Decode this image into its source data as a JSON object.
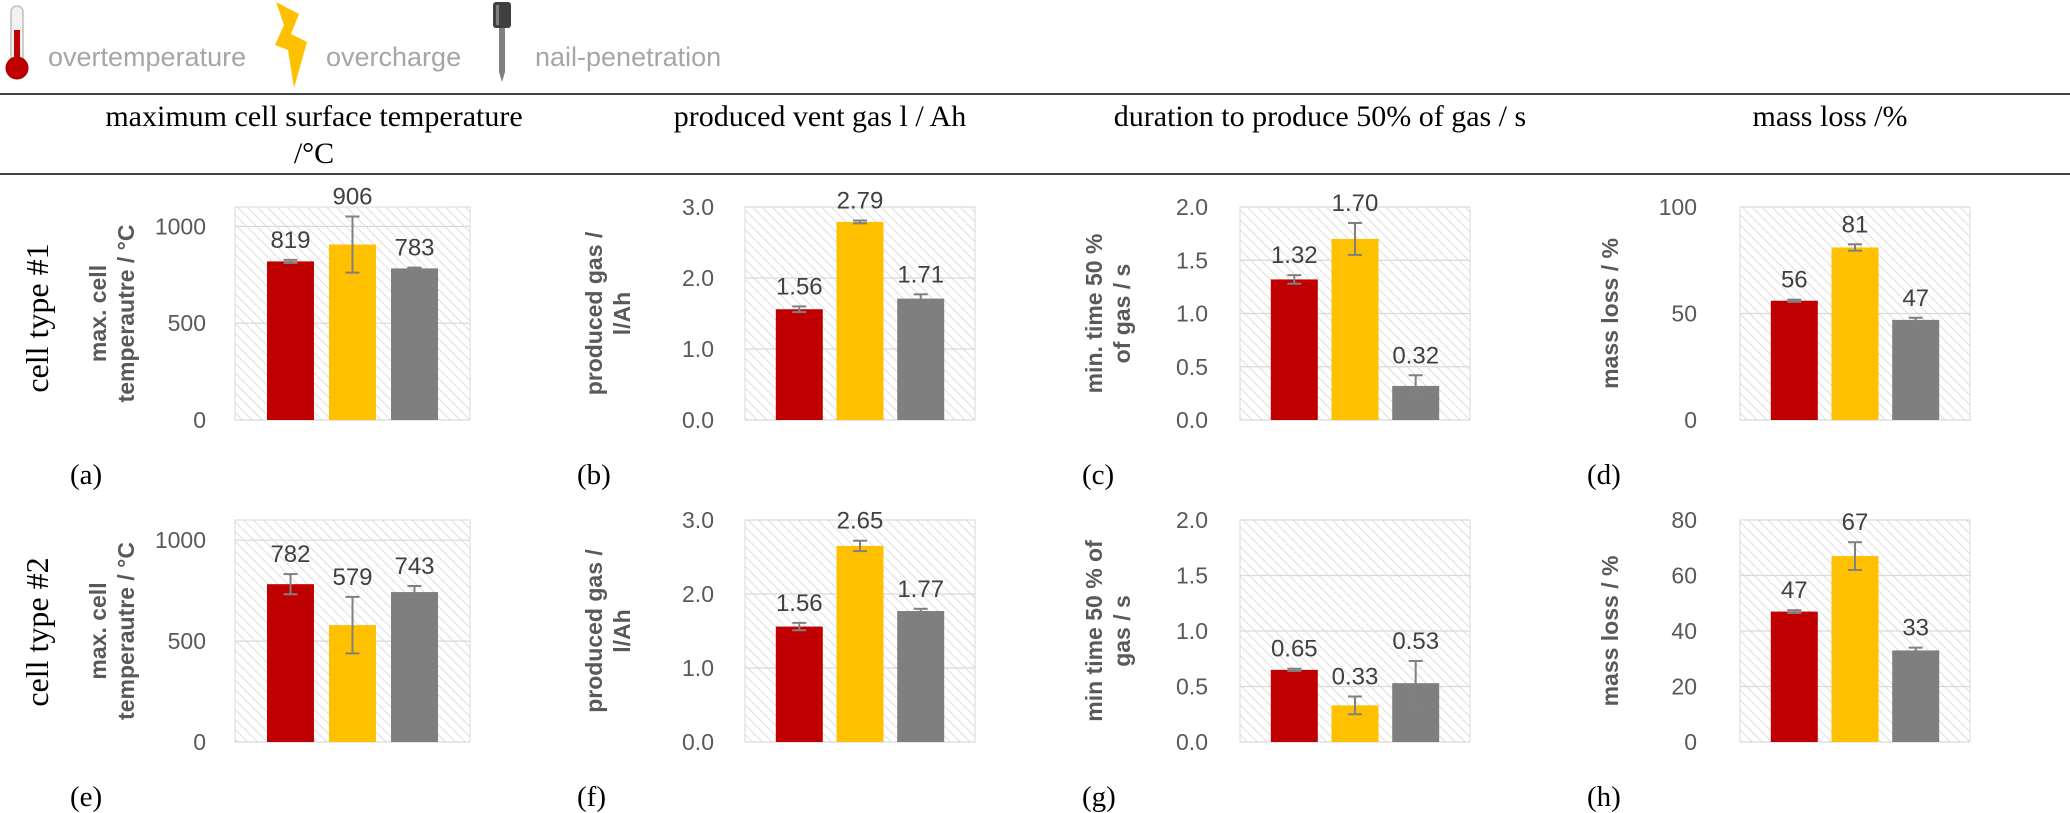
{
  "legend": {
    "items": [
      {
        "label": "overtemperature",
        "icon": "thermometer-icon",
        "color": "#c00000"
      },
      {
        "label": "overcharge",
        "icon": "lightning-icon",
        "color": "#ffc000"
      },
      {
        "label": "nail-penetration",
        "icon": "nail-icon",
        "color": "#7f7f7f"
      }
    ]
  },
  "headers": [
    {
      "lines": [
        "maximum cell surface temperature",
        "/°C"
      ]
    },
    {
      "lines": [
        "produced vent gas l / Ah"
      ]
    },
    {
      "lines": [
        "duration to produce 50% of gas / s"
      ]
    },
    {
      "lines": [
        "mass loss /%"
      ]
    }
  ],
  "rows": [
    {
      "label": "cell type #1"
    },
    {
      "label": "cell type #2"
    }
  ],
  "colors": {
    "overtemperature": "#c00000",
    "overcharge": "#ffc000",
    "nail_penetration": "#7f7f7f",
    "error_bar": "#808080",
    "grid": "#d9d9d9",
    "hatch": "#d4d4d4"
  },
  "chart_data": [
    {
      "panel": "(a)",
      "type": "bar",
      "ylabel_lines": [
        "max. cell",
        "temperautre / °C"
      ],
      "ylim": [
        0,
        1100
      ],
      "ticks": [
        0,
        500,
        1000
      ],
      "tick_labels": [
        "0",
        "500",
        "1000"
      ],
      "categories": [
        "overtemperature",
        "overcharge",
        "nail-penetration"
      ],
      "values": [
        819,
        906,
        783
      ],
      "errors": [
        8,
        145,
        4
      ],
      "labels": [
        "819",
        "906",
        "783"
      ]
    },
    {
      "panel": "(b)",
      "type": "bar",
      "ylabel_lines": [
        "produced gas /",
        "l/Ah"
      ],
      "ylim": [
        0,
        3.0
      ],
      "ticks": [
        0,
        1,
        2,
        3
      ],
      "tick_labels": [
        "0.0",
        "1.0",
        "2.0",
        "3.0"
      ],
      "categories": [
        "overtemperature",
        "overcharge",
        "nail-penetration"
      ],
      "values": [
        1.56,
        2.79,
        1.71
      ],
      "errors": [
        0.04,
        0.02,
        0.06
      ],
      "labels": [
        "1.56",
        "2.79",
        "1.71"
      ]
    },
    {
      "panel": "(c)",
      "type": "bar",
      "ylabel_lines": [
        "min. time 50 %",
        "of gas / s"
      ],
      "ylim": [
        0,
        2.0
      ],
      "ticks": [
        0,
        0.5,
        1.0,
        1.5,
        2.0
      ],
      "tick_labels": [
        "0.0",
        "0.5",
        "1.0",
        "1.5",
        "2.0"
      ],
      "categories": [
        "overtemperature",
        "overcharge",
        "nail-penetration"
      ],
      "values": [
        1.32,
        1.7,
        0.32
      ],
      "errors": [
        0.04,
        0.15,
        0.1
      ],
      "labels": [
        "1.32",
        "1.70",
        "0.32"
      ]
    },
    {
      "panel": "(d)",
      "type": "bar",
      "ylabel_lines": [
        "mass loss / %"
      ],
      "ylim": [
        0,
        100
      ],
      "ticks": [
        0,
        50,
        100
      ],
      "tick_labels": [
        "0",
        "50",
        "100"
      ],
      "categories": [
        "overtemperature",
        "overcharge",
        "nail-penetration"
      ],
      "values": [
        56,
        81,
        47
      ],
      "errors": [
        0.5,
        1.5,
        1
      ],
      "labels": [
        "56",
        "81",
        "47"
      ]
    },
    {
      "panel": "(e)",
      "type": "bar",
      "ylabel_lines": [
        "max. cell",
        "temperautre / °C"
      ],
      "ylim": [
        0,
        1100
      ],
      "ticks": [
        0,
        500,
        1000
      ],
      "tick_labels": [
        "0",
        "500",
        "1000"
      ],
      "categories": [
        "overtemperature",
        "overcharge",
        "nail-penetration"
      ],
      "values": [
        782,
        579,
        743
      ],
      "errors": [
        50,
        140,
        30
      ],
      "labels": [
        "782",
        "579",
        "743"
      ]
    },
    {
      "panel": "(f)",
      "type": "bar",
      "ylabel_lines": [
        "produced gas /",
        "l/Ah"
      ],
      "ylim": [
        0,
        3.0
      ],
      "ticks": [
        0,
        1,
        2,
        3
      ],
      "tick_labels": [
        "0.0",
        "1.0",
        "2.0",
        "3.0"
      ],
      "categories": [
        "overtemperature",
        "overcharge",
        "nail-penetration"
      ],
      "values": [
        1.56,
        2.65,
        1.77
      ],
      "errors": [
        0.05,
        0.07,
        0.03
      ],
      "labels": [
        "1.56",
        "2.65",
        "1.77"
      ]
    },
    {
      "panel": "(g)",
      "type": "bar",
      "ylabel_lines": [
        "min time 50 % of",
        "gas / s"
      ],
      "ylim": [
        0,
        2.0
      ],
      "ticks": [
        0,
        0.5,
        1.0,
        1.5,
        2.0
      ],
      "tick_labels": [
        "0.0",
        "0.5",
        "1.0",
        "1.5",
        "2.0"
      ],
      "categories": [
        "overtemperature",
        "overcharge",
        "nail-penetration"
      ],
      "values": [
        0.65,
        0.33,
        0.53
      ],
      "errors": [
        0.01,
        0.08,
        0.2
      ],
      "labels": [
        "0.65",
        "0.33",
        "0.53"
      ]
    },
    {
      "panel": "(h)",
      "type": "bar",
      "ylabel_lines": [
        "mass loss / %"
      ],
      "ylim": [
        0,
        80
      ],
      "ticks": [
        0,
        20,
        40,
        60,
        80
      ],
      "tick_labels": [
        "0",
        "20",
        "40",
        "60",
        "80"
      ],
      "categories": [
        "overtemperature",
        "overcharge",
        "nail-penetration"
      ],
      "values": [
        47,
        67,
        33
      ],
      "errors": [
        0.5,
        5,
        1
      ],
      "labels": [
        "47",
        "67",
        "33"
      ]
    }
  ]
}
